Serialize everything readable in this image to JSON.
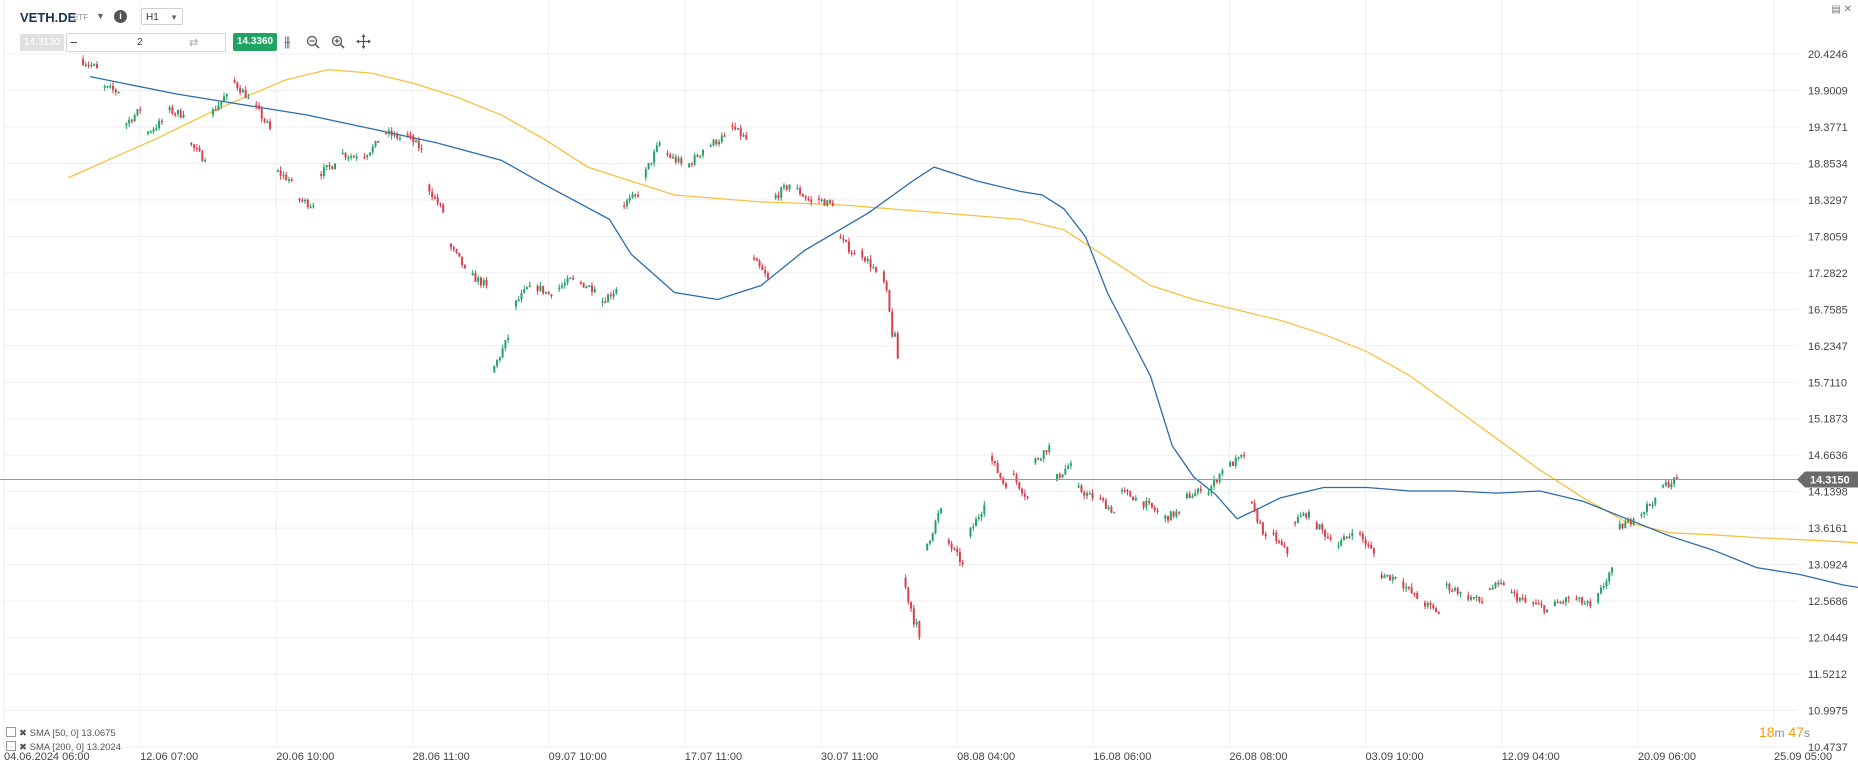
{
  "header": {
    "symbol": "VETH.DE",
    "instrument_type": "ETF",
    "timeframe": "H1",
    "bid_price": "14.3130",
    "quantity": "2",
    "ask_price": "14.3360",
    "icons": [
      "info-icon",
      "chart-type-icon",
      "zoom-out-icon",
      "zoom-in-icon",
      "crosshair-icon"
    ]
  },
  "indicators": [
    {
      "label": "SMA [50, 0] 13.0675",
      "color": "#2b6cb0"
    },
    {
      "label": "SMA [200, 0] 13.2024",
      "color": "#f5c242"
    }
  ],
  "timer": {
    "minutes": "18",
    "m_unit": "m",
    "seconds": "47",
    "s_unit": "s"
  },
  "colors": {
    "up": "#26a269",
    "down": "#d6404f",
    "sma50": "#2b6cb0",
    "sma200": "#f5c242",
    "price_line": "#9a9a9a",
    "price_label_bg": "#6b6b6b",
    "grid": "#efefef"
  },
  "chart_data": {
    "type": "candlestick",
    "symbol": "VETH.DE",
    "current_price": 14.315,
    "y_ticks": [
      20.4246,
      19.9009,
      19.3771,
      18.8534,
      18.3297,
      17.8059,
      17.2822,
      16.7585,
      16.2347,
      15.711,
      15.1873,
      14.6636,
      14.1398,
      13.6161,
      13.0924,
      12.5686,
      12.0449,
      11.5212,
      10.9975,
      10.4737
    ],
    "y_tick_labels": [
      "20.4246",
      "19.9009",
      "19.3771",
      "18.8534",
      "18.3297",
      "17.8059",
      "17.2822",
      "16.7585",
      "16.2347",
      "15.7110",
      "15.1873",
      "14.6636",
      "14.1398",
      "13.6161",
      "13.0924",
      "12.5686",
      "12.0449",
      "11.5212",
      "10.9975",
      "10.4737"
    ],
    "current_price_label": "14.3150",
    "ylim": [
      10.4737,
      20.4246
    ],
    "x_ticks": [
      "04.06.2024 06:00",
      "12.06 07:00",
      "20.06 10:00",
      "28.06 11:00",
      "09.07 10:00",
      "17.07 11:00",
      "30.07 11:00",
      "08.08 04:00",
      "16.08 06:00",
      "26.08 08:00",
      "03.09 10:00",
      "12.09 04:00",
      "20.09 06:00",
      "25.09 05:00"
    ],
    "sessions": [
      {
        "x": "10.06",
        "open": 20.35,
        "close": 20.22
      },
      {
        "x": "12.06",
        "open": 19.95,
        "close": 19.88
      },
      {
        "x": "13.06",
        "open": 19.4,
        "close": 19.62
      },
      {
        "x": "14.06",
        "open": 19.28,
        "close": 19.45
      },
      {
        "x": "17.06",
        "open": 19.62,
        "close": 19.55
      },
      {
        "x": "18.06",
        "open": 19.15,
        "close": 18.9
      },
      {
        "x": "19.06",
        "open": 19.55,
        "close": 19.85
      },
      {
        "x": "20.06",
        "open": 20.05,
        "close": 19.8
      },
      {
        "x": "21.06",
        "open": 19.7,
        "close": 19.35
      },
      {
        "x": "24.06",
        "open": 18.75,
        "close": 18.6
      },
      {
        "x": "25.06",
        "open": 18.35,
        "close": 18.25
      },
      {
        "x": "26.06",
        "open": 18.7,
        "close": 18.85
      },
      {
        "x": "27.06",
        "open": 19.0,
        "close": 18.95
      },
      {
        "x": "28.06",
        "open": 18.95,
        "close": 19.15
      },
      {
        "x": "01.07",
        "open": 19.3,
        "close": 19.22
      },
      {
        "x": "02.07",
        "open": 19.28,
        "close": 19.05
      },
      {
        "x": "03.07",
        "open": 18.55,
        "close": 18.15
      },
      {
        "x": "04.07",
        "open": 17.7,
        "close": 17.35
      },
      {
        "x": "05.07",
        "open": 17.25,
        "close": 17.1
      },
      {
        "x": "08.07",
        "open": 15.85,
        "close": 16.35
      },
      {
        "x": "09.07",
        "open": 16.8,
        "close": 17.1
      },
      {
        "x": "10.07",
        "open": 17.1,
        "close": 16.95
      },
      {
        "x": "11.07",
        "open": 17.05,
        "close": 17.2
      },
      {
        "x": "12.07",
        "open": 17.15,
        "close": 17.05
      },
      {
        "x": "15.07",
        "open": 16.85,
        "close": 17.05
      },
      {
        "x": "16.07",
        "open": 18.25,
        "close": 18.4
      },
      {
        "x": "17.07",
        "open": 18.65,
        "close": 19.15
      },
      {
        "x": "18.07",
        "open": 19.0,
        "close": 18.85
      },
      {
        "x": "19.07",
        "open": 18.8,
        "close": 19.05
      },
      {
        "x": "22.07",
        "open": 19.1,
        "close": 19.25
      },
      {
        "x": "23.07",
        "open": 19.4,
        "close": 19.2
      },
      {
        "x": "24.07",
        "open": 17.5,
        "close": 17.2
      },
      {
        "x": "25.07",
        "open": 18.35,
        "close": 18.55
      },
      {
        "x": "26.07",
        "open": 18.5,
        "close": 18.3
      },
      {
        "x": "29.07",
        "open": 18.35,
        "close": 18.25
      },
      {
        "x": "30.07",
        "open": 17.8,
        "close": 17.55
      },
      {
        "x": "31.07",
        "open": 17.6,
        "close": 17.3
      },
      {
        "x": "01.08",
        "open": 17.3,
        "close": 16.05
      },
      {
        "x": "02.08",
        "open": 12.9,
        "close": 12.05
      },
      {
        "x": "05.08",
        "open": 13.3,
        "close": 13.9
      },
      {
        "x": "06.08",
        "open": 13.45,
        "close": 13.1
      },
      {
        "x": "07.08",
        "open": 13.5,
        "close": 13.95
      },
      {
        "x": "08.08",
        "open": 14.65,
        "close": 14.2
      },
      {
        "x": "09.08",
        "open": 14.4,
        "close": 14.05
      },
      {
        "x": "12.08",
        "open": 14.55,
        "close": 14.8
      },
      {
        "x": "13.08",
        "open": 14.3,
        "close": 14.55
      },
      {
        "x": "14.08",
        "open": 14.2,
        "close": 14.05
      },
      {
        "x": "15.08",
        "open": 14.05,
        "close": 13.85
      },
      {
        "x": "16.08",
        "open": 14.15,
        "close": 14.05
      },
      {
        "x": "19.08",
        "open": 14.0,
        "close": 13.85
      },
      {
        "x": "20.08",
        "open": 13.75,
        "close": 13.85
      },
      {
        "x": "21.08",
        "open": 14.05,
        "close": 14.15
      },
      {
        "x": "22.08",
        "open": 14.1,
        "close": 14.45
      },
      {
        "x": "23.08",
        "open": 14.5,
        "close": 14.65
      },
      {
        "x": "26.08",
        "open": 14.0,
        "close": 13.5
      },
      {
        "x": "27.08",
        "open": 13.55,
        "close": 13.25
      },
      {
        "x": "28.08",
        "open": 13.7,
        "close": 13.85
      },
      {
        "x": "29.08",
        "open": 13.7,
        "close": 13.45
      },
      {
        "x": "30.08",
        "open": 13.35,
        "close": 13.55
      },
      {
        "x": "02.09",
        "open": 13.55,
        "close": 13.25
      },
      {
        "x": "03.09",
        "open": 12.95,
        "close": 12.9
      },
      {
        "x": "04.09",
        "open": 12.85,
        "close": 12.6
      },
      {
        "x": "05.09",
        "open": 12.55,
        "close": 12.4
      },
      {
        "x": "06.09",
        "open": 12.8,
        "close": 12.7
      },
      {
        "x": "09.09",
        "open": 12.65,
        "close": 12.55
      },
      {
        "x": "10.09",
        "open": 12.75,
        "close": 12.8
      },
      {
        "x": "11.09",
        "open": 12.7,
        "close": 12.55
      },
      {
        "x": "12.09",
        "open": 12.55,
        "close": 12.45
      },
      {
        "x": "13.09",
        "open": 12.5,
        "close": 12.6
      },
      {
        "x": "16.09",
        "open": 12.6,
        "close": 12.5
      },
      {
        "x": "17.09",
        "open": 12.55,
        "close": 13.05
      },
      {
        "x": "18.09",
        "open": 13.6,
        "close": 13.75
      },
      {
        "x": "19.09",
        "open": 13.8,
        "close": 14.05
      },
      {
        "x": "20.09",
        "open": 14.2,
        "close": 14.32
      }
    ],
    "sma50": [
      [
        0,
        20.1
      ],
      [
        4,
        19.85
      ],
      [
        7,
        19.7
      ],
      [
        10,
        19.55
      ],
      [
        13,
        19.35
      ],
      [
        16,
        19.15
      ],
      [
        19,
        18.9
      ],
      [
        21,
        18.55
      ],
      [
        24,
        18.05
      ],
      [
        25,
        17.55
      ],
      [
        27,
        17.0
      ],
      [
        29,
        16.9
      ],
      [
        31,
        17.1
      ],
      [
        33,
        17.6
      ],
      [
        36,
        18.15
      ],
      [
        38,
        18.6
      ],
      [
        39,
        18.8
      ],
      [
        41,
        18.6
      ],
      [
        43,
        18.45
      ],
      [
        44,
        18.4
      ],
      [
        45,
        18.2
      ],
      [
        46,
        17.8
      ],
      [
        47,
        17.0
      ],
      [
        49,
        15.8
      ],
      [
        50,
        14.8
      ],
      [
        51,
        14.35
      ],
      [
        52,
        14.1
      ],
      [
        53,
        13.75
      ],
      [
        54,
        13.9
      ],
      [
        55,
        14.05
      ],
      [
        57,
        14.2
      ],
      [
        59,
        14.2
      ],
      [
        61,
        14.15
      ],
      [
        63,
        14.15
      ],
      [
        65,
        14.12
      ],
      [
        67,
        14.15
      ],
      [
        69,
        14.0
      ],
      [
        71,
        13.75
      ],
      [
        73,
        13.5
      ],
      [
        75,
        13.3
      ],
      [
        77,
        13.05
      ],
      [
        79,
        12.95
      ],
      [
        81,
        12.8
      ],
      [
        83,
        12.7
      ],
      [
        85,
        12.65
      ],
      [
        87,
        12.6
      ],
      [
        89,
        12.55
      ],
      [
        91,
        12.55
      ],
      [
        93,
        12.6
      ],
      [
        95,
        12.75
      ],
      [
        97,
        13.05
      ]
    ],
    "sma200": [
      [
        -1,
        18.65
      ],
      [
        3,
        19.2
      ],
      [
        6,
        19.65
      ],
      [
        9,
        20.05
      ],
      [
        11,
        20.2
      ],
      [
        13,
        20.15
      ],
      [
        15,
        20.0
      ],
      [
        17,
        19.8
      ],
      [
        19,
        19.55
      ],
      [
        21,
        19.2
      ],
      [
        23,
        18.8
      ],
      [
        25,
        18.6
      ],
      [
        27,
        18.4
      ],
      [
        29,
        18.35
      ],
      [
        31,
        18.3
      ],
      [
        33,
        18.28
      ],
      [
        35,
        18.25
      ],
      [
        37,
        18.2
      ],
      [
        39,
        18.15
      ],
      [
        41,
        18.1
      ],
      [
        43,
        18.05
      ],
      [
        45,
        17.9
      ],
      [
        47,
        17.5
      ],
      [
        49,
        17.1
      ],
      [
        51,
        16.9
      ],
      [
        53,
        16.75
      ],
      [
        55,
        16.6
      ],
      [
        57,
        16.4
      ],
      [
        59,
        16.15
      ],
      [
        61,
        15.8
      ],
      [
        63,
        15.35
      ],
      [
        65,
        14.9
      ],
      [
        67,
        14.45
      ],
      [
        69,
        14.05
      ],
      [
        71,
        13.7
      ],
      [
        73,
        13.55
      ],
      [
        75,
        13.52
      ],
      [
        77,
        13.48
      ],
      [
        79,
        13.45
      ],
      [
        81,
        13.42
      ],
      [
        83,
        13.37
      ],
      [
        85,
        13.3
      ],
      [
        87,
        13.25
      ],
      [
        89,
        13.2
      ],
      [
        91,
        13.16
      ],
      [
        93,
        13.13
      ],
      [
        95,
        13.13
      ],
      [
        97,
        13.15
      ]
    ]
  }
}
